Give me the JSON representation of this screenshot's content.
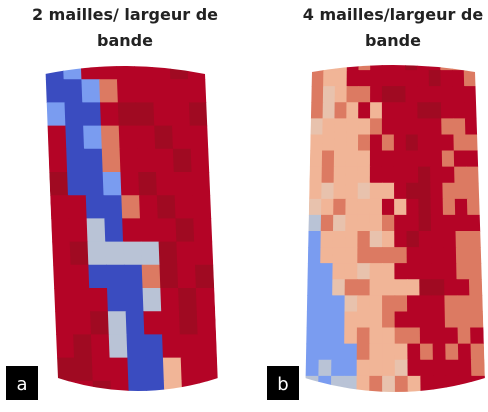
{
  "panels": [
    {
      "title_lines": [
        "2 mailles/ largeur de",
        "bande"
      ],
      "label": "a"
    },
    {
      "title_lines": [
        "4 mailles/largeur de",
        "bande"
      ],
      "label": "b"
    }
  ]
}
